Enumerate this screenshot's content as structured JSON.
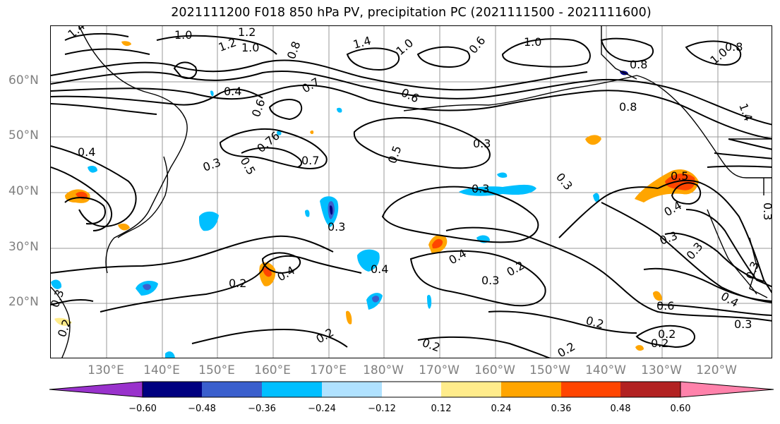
{
  "title": "2021111200 F018 850 hPa PV, precipitation PC (2021111500 - 2021111600)",
  "map": {
    "lat_labels": [
      "60°N",
      "50°N",
      "40°N",
      "30°N",
      "20°N"
    ],
    "lon_labels": [
      "130°E",
      "140°E",
      "150°E",
      "160°E",
      "170°E",
      "180°W",
      "170°W",
      "160°W",
      "150°W",
      "140°W",
      "130°W",
      "120°W"
    ],
    "contour_labels": [
      "1.4",
      "1.0",
      "1.2",
      "1.2",
      "1.0",
      "0.8",
      "1.4",
      "1.0",
      "0.6",
      "0.4",
      "0.7",
      "0.6",
      "1.0",
      "0.8",
      "0.6",
      "0.8",
      "0.8",
      "1.0",
      "1.4",
      "0.4",
      "0.3",
      "0.3",
      "0.5",
      "0.7",
      "0.76",
      "0.5",
      "0.3",
      "0.3",
      "0.3",
      "0.5",
      "0.4",
      "0.3",
      "0.3",
      "0.3",
      "0.4",
      "0.2",
      "0.4",
      "0.4",
      "0.3",
      "0.2",
      "0.6",
      "0.4",
      "0.3",
      "0.2",
      "0.2",
      "0.2",
      "0.2",
      "0.2",
      "0.3",
      "0.2",
      "0.2",
      "0.3"
    ],
    "line_color": "#000000",
    "grid_color": "#999999"
  },
  "colorbar": {
    "colors": [
      "#9932cc",
      "#000080",
      "#3a5fcd",
      "#00bfff",
      "#b0e2ff",
      "#ffffff",
      "#ffec8b",
      "#ffa500",
      "#ff4500",
      "#b22222",
      "#ff82ab"
    ],
    "tick_labels": [
      "−0.60",
      "−0.48",
      "−0.36",
      "−0.24",
      "−0.12",
      "0.12",
      "0.24",
      "0.36",
      "0.48",
      "0.60"
    ]
  }
}
